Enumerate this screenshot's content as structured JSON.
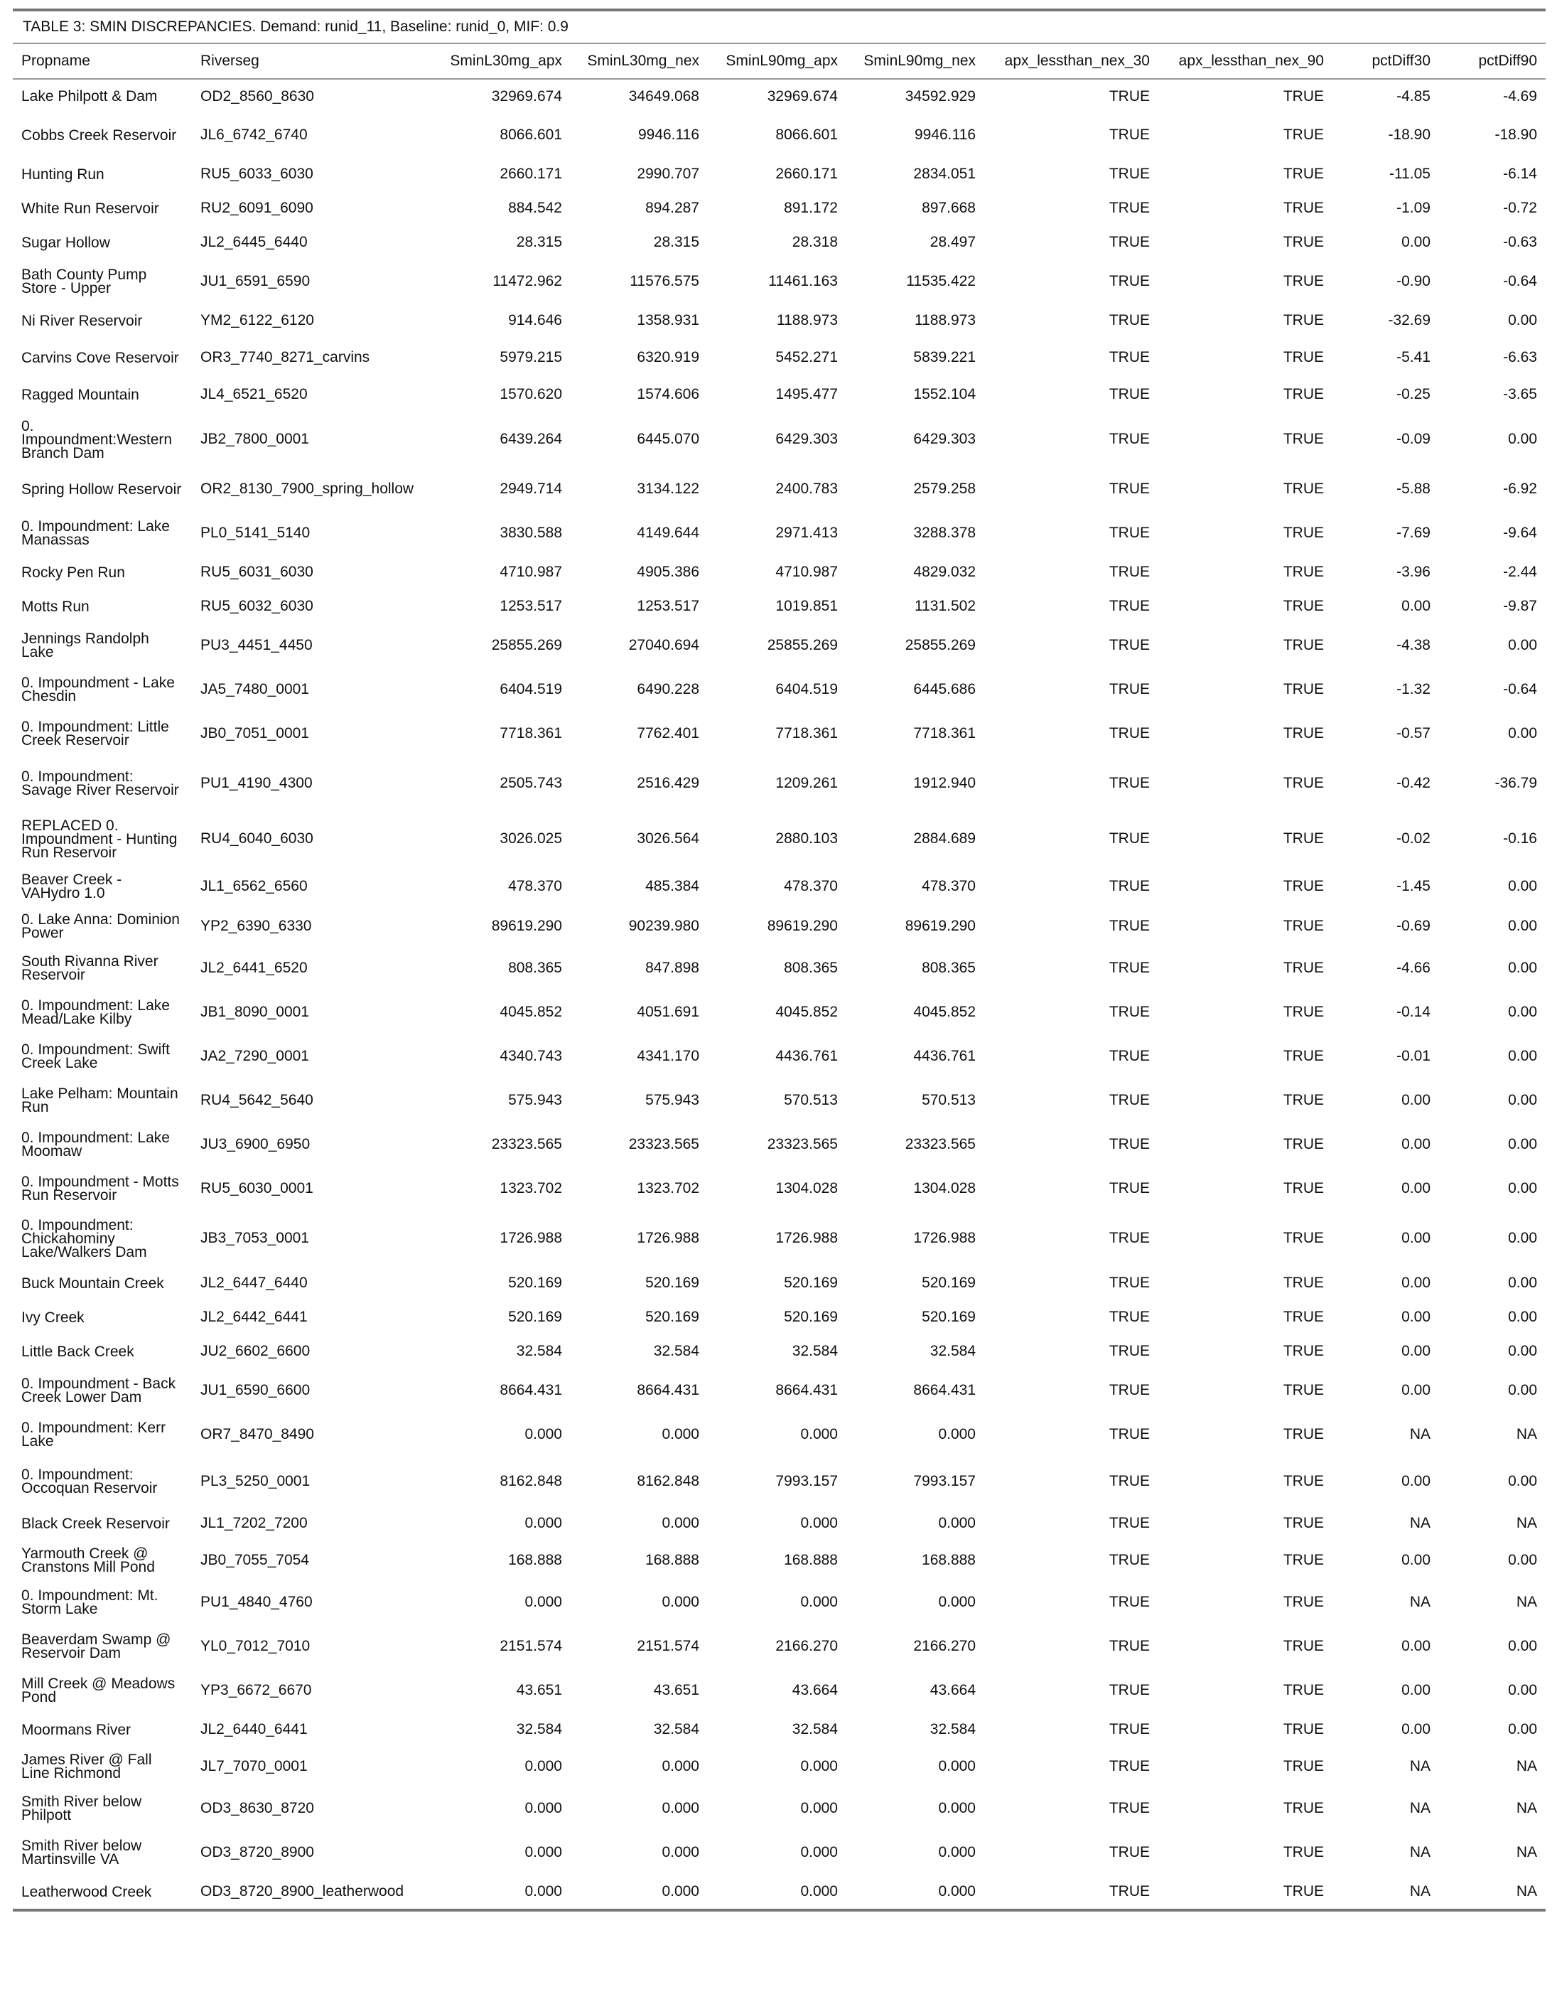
{
  "caption": "TABLE 3: SMIN DISCREPANCIES. Demand: runid_11, Baseline: runid_0, MIF: 0.9",
  "columns": [
    "Propname",
    "Riverseg",
    "SminL30mg_apx",
    "SminL30mg_nex",
    "SminL90mg_apx",
    "SminL90mg_nex",
    "apx_lessthan_nex_30",
    "apx_lessthan_nex_90",
    "pctDiff30",
    "pctDiff90"
  ],
  "rows": [
    [
      "Lake Philpott & Dam",
      "OD2_8560_8630",
      "32969.674",
      "34649.068",
      "32969.674",
      "34592.929",
      "TRUE",
      "TRUE",
      "-4.85",
      "-4.69"
    ],
    [
      "Cobbs Creek Reservoir",
      "JL6_6742_6740",
      "8066.601",
      "9946.116",
      "8066.601",
      "9946.116",
      "TRUE",
      "TRUE",
      "-18.90",
      "-18.90"
    ],
    [
      "Hunting Run",
      "RU5_6033_6030",
      "2660.171",
      "2990.707",
      "2660.171",
      "2834.051",
      "TRUE",
      "TRUE",
      "-11.05",
      "-6.14"
    ],
    [
      "White Run Reservoir",
      "RU2_6091_6090",
      "884.542",
      "894.287",
      "891.172",
      "897.668",
      "TRUE",
      "TRUE",
      "-1.09",
      "-0.72"
    ],
    [
      "Sugar Hollow",
      "JL2_6445_6440",
      "28.315",
      "28.315",
      "28.318",
      "28.497",
      "TRUE",
      "TRUE",
      "0.00",
      "-0.63"
    ],
    [
      "Bath County Pump Store - Upper",
      "JU1_6591_6590",
      "11472.962",
      "11576.575",
      "11461.163",
      "11535.422",
      "TRUE",
      "TRUE",
      "-0.90",
      "-0.64"
    ],
    [
      "Ni River Reservoir",
      "YM2_6122_6120",
      "914.646",
      "1358.931",
      "1188.973",
      "1188.973",
      "TRUE",
      "TRUE",
      "-32.69",
      "0.00"
    ],
    [
      "Carvins Cove Reservoir",
      "OR3_7740_8271_carvins",
      "5979.215",
      "6320.919",
      "5452.271",
      "5839.221",
      "TRUE",
      "TRUE",
      "-5.41",
      "-6.63"
    ],
    [
      "Ragged Mountain",
      "JL4_6521_6520",
      "1570.620",
      "1574.606",
      "1495.477",
      "1552.104",
      "TRUE",
      "TRUE",
      "-0.25",
      "-3.65"
    ],
    [
      "0. Impoundment:Western Branch Dam",
      "JB2_7800_0001",
      "6439.264",
      "6445.070",
      "6429.303",
      "6429.303",
      "TRUE",
      "TRUE",
      "-0.09",
      "0.00"
    ],
    [
      "Spring Hollow Reservoir",
      "OR2_8130_7900_spring_hollow",
      "2949.714",
      "3134.122",
      "2400.783",
      "2579.258",
      "TRUE",
      "TRUE",
      "-5.88",
      "-6.92"
    ],
    [
      "0. Impoundment: Lake Manassas",
      "PL0_5141_5140",
      "3830.588",
      "4149.644",
      "2971.413",
      "3288.378",
      "TRUE",
      "TRUE",
      "-7.69",
      "-9.64"
    ],
    [
      "Rocky Pen Run",
      "RU5_6031_6030",
      "4710.987",
      "4905.386",
      "4710.987",
      "4829.032",
      "TRUE",
      "TRUE",
      "-3.96",
      "-2.44"
    ],
    [
      "Motts Run",
      "RU5_6032_6030",
      "1253.517",
      "1253.517",
      "1019.851",
      "1131.502",
      "TRUE",
      "TRUE",
      "0.00",
      "-9.87"
    ],
    [
      "Jennings Randolph Lake",
      "PU3_4451_4450",
      "25855.269",
      "27040.694",
      "25855.269",
      "25855.269",
      "TRUE",
      "TRUE",
      "-4.38",
      "0.00"
    ],
    [
      "0. Impoundment - Lake Chesdin",
      "JA5_7480_0001",
      "6404.519",
      "6490.228",
      "6404.519",
      "6445.686",
      "TRUE",
      "TRUE",
      "-1.32",
      "-0.64"
    ],
    [
      "0. Impoundment: Little Creek Reservoir",
      "JB0_7051_0001",
      "7718.361",
      "7762.401",
      "7718.361",
      "7718.361",
      "TRUE",
      "TRUE",
      "-0.57",
      "0.00"
    ],
    [
      "0. Impoundment: Savage River Reservoir",
      "PU1_4190_4300",
      "2505.743",
      "2516.429",
      "1209.261",
      "1912.940",
      "TRUE",
      "TRUE",
      "-0.42",
      "-36.79"
    ],
    [
      "REPLACED 0. Impoundment - Hunting Run Reservoir",
      "RU4_6040_6030",
      "3026.025",
      "3026.564",
      "2880.103",
      "2884.689",
      "TRUE",
      "TRUE",
      "-0.02",
      "-0.16"
    ],
    [
      "Beaver Creek - VAHydro 1.0",
      "JL1_6562_6560",
      "478.370",
      "485.384",
      "478.370",
      "478.370",
      "TRUE",
      "TRUE",
      "-1.45",
      "0.00"
    ],
    [
      "0. Lake Anna: Dominion Power",
      "YP2_6390_6330",
      "89619.290",
      "90239.980",
      "89619.290",
      "89619.290",
      "TRUE",
      "TRUE",
      "-0.69",
      "0.00"
    ],
    [
      "South Rivanna River Reservoir",
      "JL2_6441_6520",
      "808.365",
      "847.898",
      "808.365",
      "808.365",
      "TRUE",
      "TRUE",
      "-4.66",
      "0.00"
    ],
    [
      "0. Impoundment: Lake Mead/Lake Kilby",
      "JB1_8090_0001",
      "4045.852",
      "4051.691",
      "4045.852",
      "4045.852",
      "TRUE",
      "TRUE",
      "-0.14",
      "0.00"
    ],
    [
      "0. Impoundment: Swift Creek Lake",
      "JA2_7290_0001",
      "4340.743",
      "4341.170",
      "4436.761",
      "4436.761",
      "TRUE",
      "TRUE",
      "-0.01",
      "0.00"
    ],
    [
      "Lake Pelham: Mountain Run",
      "RU4_5642_5640",
      "575.943",
      "575.943",
      "570.513",
      "570.513",
      "TRUE",
      "TRUE",
      "0.00",
      "0.00"
    ],
    [
      "0. Impoundment: Lake Moomaw",
      "JU3_6900_6950",
      "23323.565",
      "23323.565",
      "23323.565",
      "23323.565",
      "TRUE",
      "TRUE",
      "0.00",
      "0.00"
    ],
    [
      "0. Impoundment - Motts Run Reservoir",
      "RU5_6030_0001",
      "1323.702",
      "1323.702",
      "1304.028",
      "1304.028",
      "TRUE",
      "TRUE",
      "0.00",
      "0.00"
    ],
    [
      "0. Impoundment: Chickahominy Lake/Walkers Dam",
      "JB3_7053_0001",
      "1726.988",
      "1726.988",
      "1726.988",
      "1726.988",
      "TRUE",
      "TRUE",
      "0.00",
      "0.00"
    ],
    [
      "Buck Mountain Creek",
      "JL2_6447_6440",
      "520.169",
      "520.169",
      "520.169",
      "520.169",
      "TRUE",
      "TRUE",
      "0.00",
      "0.00"
    ],
    [
      "Ivy Creek",
      "JL2_6442_6441",
      "520.169",
      "520.169",
      "520.169",
      "520.169",
      "TRUE",
      "TRUE",
      "0.00",
      "0.00"
    ],
    [
      "Little Back Creek",
      "JU2_6602_6600",
      "32.584",
      "32.584",
      "32.584",
      "32.584",
      "TRUE",
      "TRUE",
      "0.00",
      "0.00"
    ],
    [
      "0. Impoundment - Back Creek Lower Dam",
      "JU1_6590_6600",
      "8664.431",
      "8664.431",
      "8664.431",
      "8664.431",
      "TRUE",
      "TRUE",
      "0.00",
      "0.00"
    ],
    [
      "0. Impoundment: Kerr Lake",
      "OR7_8470_8490",
      "0.000",
      "0.000",
      "0.000",
      "0.000",
      "TRUE",
      "TRUE",
      "NA",
      "NA"
    ],
    [
      "0. Impoundment: Occoquan Reservoir",
      "PL3_5250_0001",
      "8162.848",
      "8162.848",
      "7993.157",
      "7993.157",
      "TRUE",
      "TRUE",
      "0.00",
      "0.00"
    ],
    [
      "Black Creek Reservoir",
      "JL1_7202_7200",
      "0.000",
      "0.000",
      "0.000",
      "0.000",
      "TRUE",
      "TRUE",
      "NA",
      "NA"
    ],
    [
      "Yarmouth Creek @ Cranstons Mill Pond",
      "JB0_7055_7054",
      "168.888",
      "168.888",
      "168.888",
      "168.888",
      "TRUE",
      "TRUE",
      "0.00",
      "0.00"
    ],
    [
      "0. Impoundment: Mt. Storm Lake",
      "PU1_4840_4760",
      "0.000",
      "0.000",
      "0.000",
      "0.000",
      "TRUE",
      "TRUE",
      "NA",
      "NA"
    ],
    [
      "Beaverdam Swamp @ Reservoir Dam",
      "YL0_7012_7010",
      "2151.574",
      "2151.574",
      "2166.270",
      "2166.270",
      "TRUE",
      "TRUE",
      "0.00",
      "0.00"
    ],
    [
      "Mill Creek @ Meadows Pond",
      "YP3_6672_6670",
      "43.651",
      "43.651",
      "43.664",
      "43.664",
      "TRUE",
      "TRUE",
      "0.00",
      "0.00"
    ],
    [
      "Moormans River",
      "JL2_6440_6441",
      "32.584",
      "32.584",
      "32.584",
      "32.584",
      "TRUE",
      "TRUE",
      "0.00",
      "0.00"
    ],
    [
      "James River @ Fall Line Richmond",
      "JL7_7070_0001",
      "0.000",
      "0.000",
      "0.000",
      "0.000",
      "TRUE",
      "TRUE",
      "NA",
      "NA"
    ],
    [
      "Smith River below Philpott",
      "OD3_8630_8720",
      "0.000",
      "0.000",
      "0.000",
      "0.000",
      "TRUE",
      "TRUE",
      "NA",
      "NA"
    ],
    [
      "Smith River below Martinsville VA",
      "OD3_8720_8900",
      "0.000",
      "0.000",
      "0.000",
      "0.000",
      "TRUE",
      "TRUE",
      "NA",
      "NA"
    ],
    [
      "Leatherwood Creek",
      "OD3_8720_8900_leatherwood",
      "0.000",
      "0.000",
      "0.000",
      "0.000",
      "TRUE",
      "TRUE",
      "NA",
      "NA"
    ]
  ]
}
